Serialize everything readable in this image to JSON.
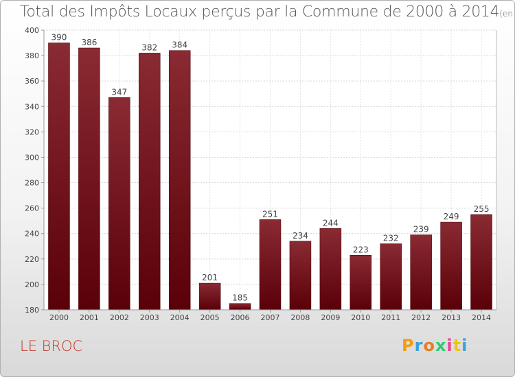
{
  "chart_data": {
    "type": "bar",
    "title": "Total des Impôts Locaux perçus par la Commune de 2000 à 2014",
    "subtitle": "(en milliers d'€)",
    "categories": [
      "2000",
      "2001",
      "2002",
      "2003",
      "2004",
      "2005",
      "2006",
      "2007",
      "2008",
      "2009",
      "2010",
      "2011",
      "2012",
      "2013",
      "2014"
    ],
    "values": [
      390,
      386,
      347,
      382,
      384,
      201,
      185,
      251,
      234,
      244,
      223,
      232,
      239,
      249,
      255
    ],
    "ylim": [
      180,
      400
    ],
    "yticks": [
      180,
      200,
      220,
      240,
      260,
      280,
      300,
      320,
      340,
      360,
      380,
      400
    ],
    "xlabel": "",
    "ylabel": "",
    "grid": true,
    "bar_color": "#6e0f1a"
  },
  "footer": {
    "commune": "LE BROC",
    "logo": [
      "P",
      "r",
      "o",
      "x",
      "i",
      "t",
      "i"
    ],
    "logo_colors": [
      "#f39c12",
      "#3aa0d8",
      "#e67e22",
      "#2ecc71",
      "#e84393",
      "#f1c40f",
      "#3aa0d8"
    ]
  }
}
